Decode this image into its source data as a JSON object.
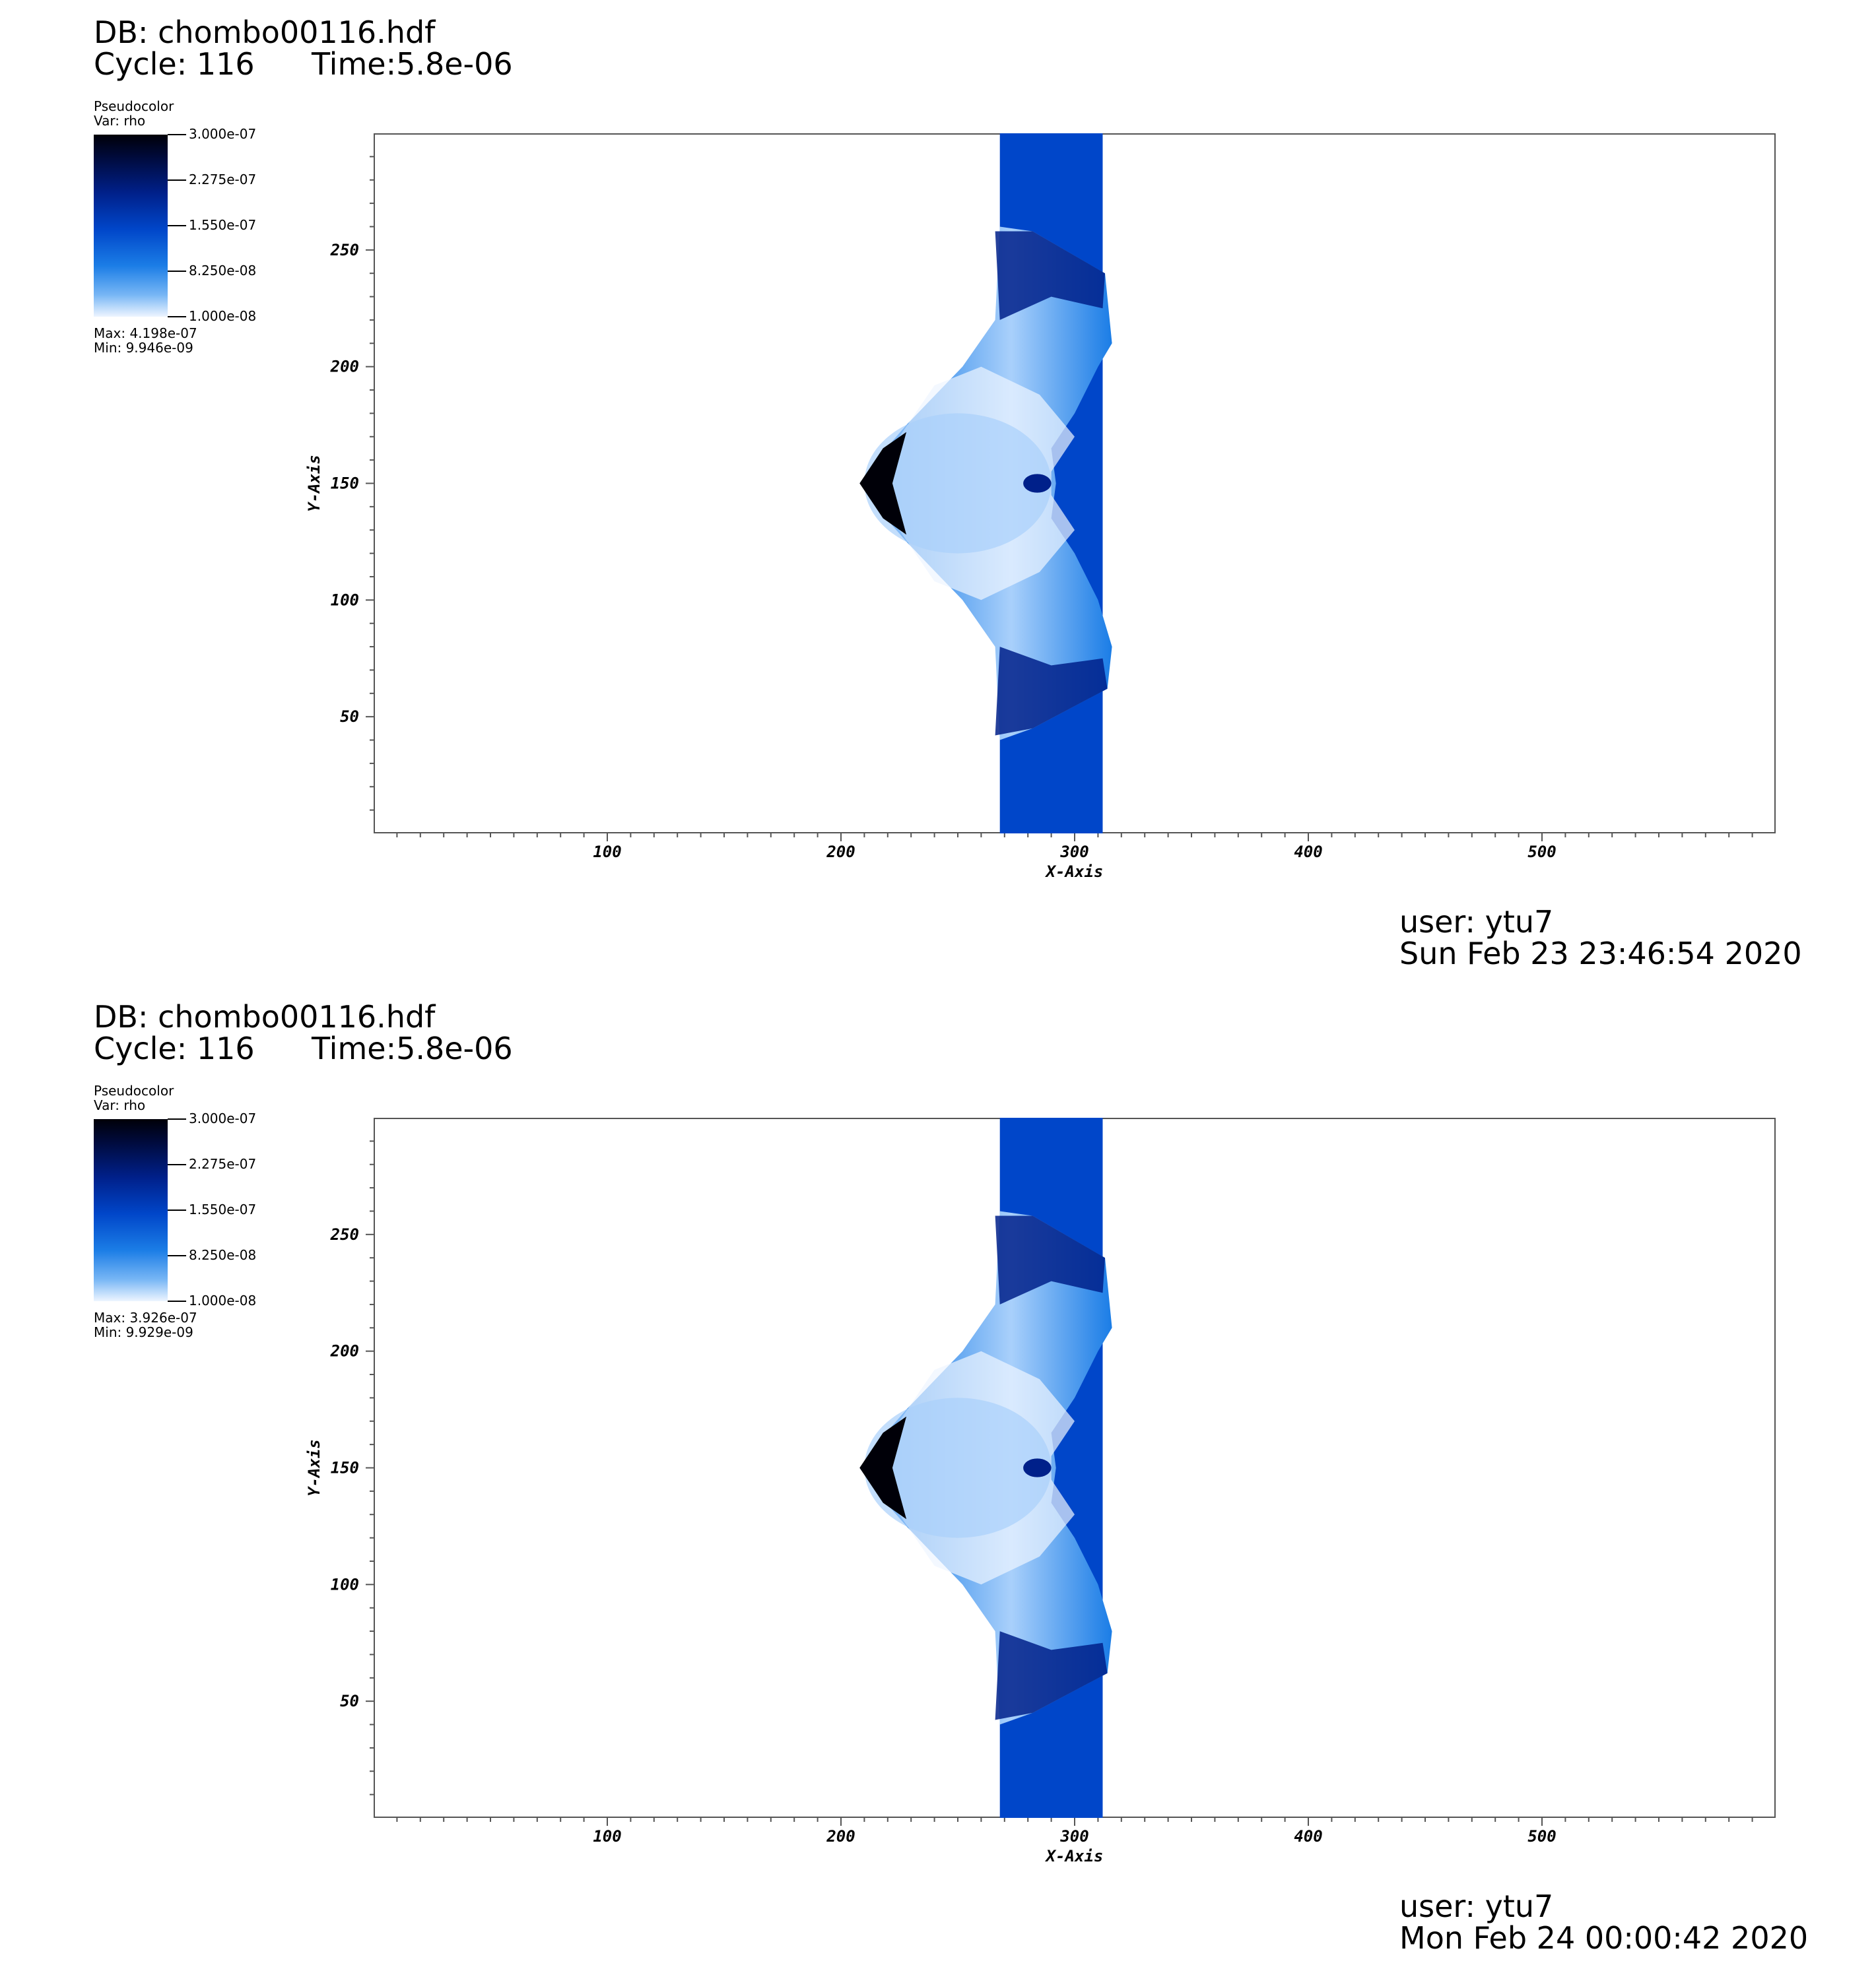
{
  "panels": [
    {
      "db": "DB: chombo00116.hdf",
      "cycle": "Cycle: 116",
      "time": "Time:5.8e-06",
      "legend": {
        "title": "Pseudocolor",
        "var": "Var: rho",
        "ticks": [
          "3.000e-07",
          "2.275e-07",
          "1.550e-07",
          "8.250e-08",
          "1.000e-08"
        ],
        "max": "Max:  4.198e-07",
        "min": "Min:  9.946e-09"
      },
      "user": "user: ytu7",
      "date": "Sun Feb 23 23:46:54 2020"
    },
    {
      "db": "DB: chombo00116.hdf",
      "cycle": "Cycle: 116",
      "time": "Time:5.8e-06",
      "legend": {
        "title": "Pseudocolor",
        "var": "Var: rho",
        "ticks": [
          "3.000e-07",
          "2.275e-07",
          "1.550e-07",
          "8.250e-08",
          "1.000e-08"
        ],
        "max": "Max:  3.926e-07",
        "min": "Min:  9.929e-09"
      },
      "user": "user: ytu7",
      "date": "Mon Feb 24 00:00:42 2020"
    }
  ],
  "chart_data": [
    {
      "type": "heatmap",
      "variable": "rho",
      "xlabel": "X-Axis",
      "ylabel": "Y-Axis",
      "xlim": [
        0,
        600
      ],
      "ylim": [
        0,
        300
      ],
      "xticks": [
        100,
        200,
        300,
        400,
        500
      ],
      "yticks": [
        50,
        100,
        150,
        200,
        250
      ],
      "colorbar_range": [
        1e-08,
        3e-07
      ],
      "colormap": [
        "#eef5ff",
        "#1b7de6",
        "#0046c9",
        "#00208a",
        "#000008"
      ],
      "max": 4.198e-07,
      "min": 9.946e-09
    },
    {
      "type": "heatmap",
      "variable": "rho",
      "xlabel": "X-Axis",
      "ylabel": "Y-Axis",
      "xlim": [
        0,
        600
      ],
      "ylim": [
        0,
        300
      ],
      "xticks": [
        100,
        200,
        300,
        400,
        500
      ],
      "yticks": [
        50,
        100,
        150,
        200,
        250
      ],
      "colorbar_range": [
        1e-08,
        3e-07
      ],
      "colormap": [
        "#eef5ff",
        "#1b7de6",
        "#0046c9",
        "#00208a",
        "#000008"
      ],
      "max": 3.926e-07,
      "min": 9.929e-09
    }
  ]
}
